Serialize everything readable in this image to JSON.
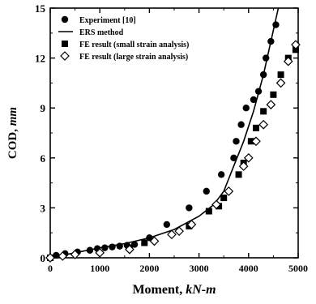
{
  "chart_data": {
    "type": "scatter",
    "xlabel_main": "Moment, ",
    "xlabel_unit": "kN-m",
    "ylabel_main": "COD, ",
    "ylabel_unit": "mm",
    "xlim": [
      0,
      5000
    ],
    "ylim": [
      0,
      15
    ],
    "xticks": [
      0,
      1000,
      2000,
      3000,
      4000,
      5000
    ],
    "yticks": [
      0,
      3,
      6,
      9,
      12,
      15
    ],
    "legend_position": "top-left",
    "series": [
      {
        "name": "Experiment [10]",
        "marker": "filled-circle",
        "points": [
          [
            0,
            0
          ],
          [
            120,
            0.15
          ],
          [
            300,
            0.25
          ],
          [
            550,
            0.35
          ],
          [
            800,
            0.45
          ],
          [
            950,
            0.55
          ],
          [
            1100,
            0.6
          ],
          [
            1250,
            0.65
          ],
          [
            1400,
            0.7
          ],
          [
            1550,
            0.75
          ],
          [
            1700,
            0.8
          ],
          [
            2000,
            1.2
          ],
          [
            2350,
            2.0
          ],
          [
            2800,
            3.0
          ],
          [
            3150,
            4.0
          ],
          [
            3450,
            5.0
          ],
          [
            3700,
            6.0
          ],
          [
            3750,
            7.0
          ],
          [
            3850,
            8.0
          ],
          [
            3950,
            9.0
          ],
          [
            4100,
            9.5
          ],
          [
            4200,
            10.0
          ],
          [
            4300,
            11.0
          ],
          [
            4350,
            12.0
          ],
          [
            4450,
            13.0
          ],
          [
            4550,
            14.0
          ]
        ]
      },
      {
        "name": "ERS method",
        "marker": "line",
        "points": [
          [
            0,
            0
          ],
          [
            500,
            0.3
          ],
          [
            1000,
            0.6
          ],
          [
            1500,
            0.85
          ],
          [
            2000,
            1.2
          ],
          [
            2500,
            1.7
          ],
          [
            3000,
            2.5
          ],
          [
            3300,
            3.2
          ],
          [
            3500,
            4.0
          ],
          [
            3700,
            5.5
          ],
          [
            3900,
            7.0
          ],
          [
            4100,
            8.8
          ],
          [
            4300,
            11.0
          ],
          [
            4450,
            13.0
          ],
          [
            4600,
            15.0
          ]
        ]
      },
      {
        "name": "FE result (small strain analysis)",
        "marker": "filled-square",
        "points": [
          [
            0,
            0
          ],
          [
            1600,
            0.6
          ],
          [
            1900,
            0.9
          ],
          [
            2800,
            1.9
          ],
          [
            3200,
            2.8
          ],
          [
            3400,
            3.1
          ],
          [
            3500,
            3.6
          ],
          [
            3800,
            5.0
          ],
          [
            3900,
            5.7
          ],
          [
            4050,
            7.0
          ],
          [
            4150,
            7.8
          ],
          [
            4300,
            8.8
          ],
          [
            4500,
            9.8
          ],
          [
            4650,
            11.0
          ],
          [
            4800,
            12.0
          ],
          [
            4950,
            12.5
          ]
        ]
      },
      {
        "name": "FE result (large strain analysis)",
        "marker": "open-diamond",
        "points": [
          [
            0,
            0
          ],
          [
            250,
            0.1
          ],
          [
            500,
            0.2
          ],
          [
            1000,
            0.3
          ],
          [
            1600,
            0.5
          ],
          [
            2100,
            1.0
          ],
          [
            2450,
            1.4
          ],
          [
            2600,
            1.6
          ],
          [
            2850,
            2.0
          ],
          [
            3350,
            3.2
          ],
          [
            3600,
            4.0
          ],
          [
            3900,
            5.5
          ],
          [
            4000,
            6.0
          ],
          [
            4150,
            7.0
          ],
          [
            4300,
            8.0
          ],
          [
            4450,
            9.2
          ],
          [
            4650,
            10.5
          ],
          [
            4800,
            11.8
          ],
          [
            4950,
            12.8
          ]
        ]
      }
    ]
  }
}
